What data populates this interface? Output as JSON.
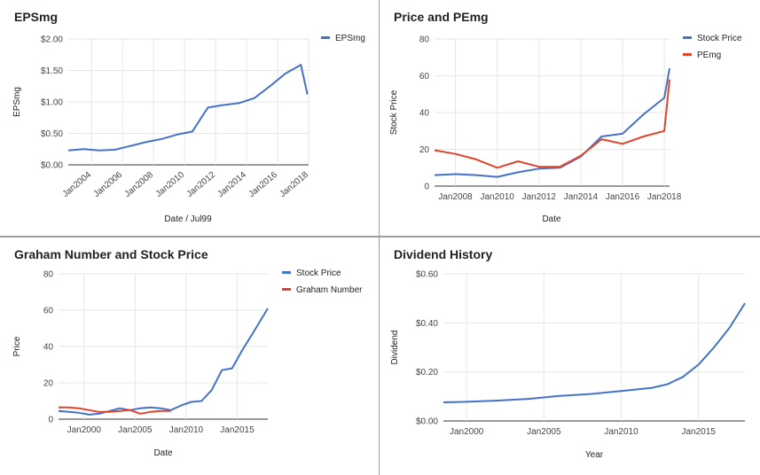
{
  "chart_data": [
    {
      "id": "eps",
      "type": "line",
      "title": "EPSmg",
      "xlabel": "Date / Jul99",
      "ylabel": "EPSmg",
      "ylim": [
        0,
        2
      ],
      "xlim": [
        2002.5,
        2018.0
      ],
      "yticks": [
        0,
        0.5,
        1.0,
        1.5,
        2.0
      ],
      "ytick_labels": [
        "$0.00",
        "$0.50",
        "$1.00",
        "$1.50",
        "$2.00"
      ],
      "xticks": [
        2004,
        2006,
        2008,
        2010,
        2012,
        2014,
        2016,
        2018
      ],
      "xtick_labels": [
        "Jan2004",
        "Jan2006",
        "Jan2008",
        "Jan2010",
        "Jan2012",
        "Jan2014",
        "Jan2016",
        "Jan2018"
      ],
      "grid": true,
      "legend_position": "top-right",
      "series": [
        {
          "name": "EPSmg",
          "color": "#4472ca",
          "x": [
            2002.5,
            2003.5,
            2004.5,
            2005.5,
            2006.5,
            2007.5,
            2008.5,
            2009.5,
            2010.5,
            2011.5,
            2012.5,
            2013.5,
            2014.5,
            2015.5,
            2016.5,
            2017.5,
            2017.92
          ],
          "y": [
            0.23,
            0.25,
            0.23,
            0.24,
            0.3,
            0.36,
            0.41,
            0.48,
            0.53,
            0.91,
            0.95,
            0.98,
            1.06,
            1.25,
            1.45,
            1.59,
            1.12
          ]
        }
      ]
    },
    {
      "id": "price_pe",
      "type": "line",
      "title": "Price and PEmg",
      "xlabel": "Date",
      "ylabel": "Stock Price",
      "ylim": [
        0,
        80
      ],
      "xlim": [
        2007.0,
        2018.25
      ],
      "yticks": [
        0,
        20,
        40,
        60,
        80
      ],
      "ytick_labels": [
        "0",
        "20",
        "40",
        "60",
        "80"
      ],
      "xticks": [
        2008,
        2010,
        2012,
        2014,
        2016,
        2018
      ],
      "xtick_labels": [
        "Jan2008",
        "Jan2010",
        "Jan2012",
        "Jan2014",
        "Jan2016",
        "Jan2018"
      ],
      "grid": true,
      "legend_position": "top-right",
      "series": [
        {
          "name": "Stock Price",
          "color": "#4472ca",
          "x": [
            2007.0,
            2008.0,
            2009.0,
            2010.0,
            2011.0,
            2012.0,
            2013.0,
            2014.0,
            2015.0,
            2016.0,
            2017.0,
            2018.0,
            2018.25
          ],
          "y": [
            6,
            6.5,
            6,
            5,
            7.5,
            9.5,
            10,
            16,
            27,
            28.5,
            39,
            48,
            64
          ]
        },
        {
          "name": "PEmg",
          "color": "#e0452b",
          "x": [
            2007.0,
            2008.0,
            2009.0,
            2010.0,
            2011.0,
            2012.0,
            2013.0,
            2014.0,
            2015.0,
            2016.0,
            2017.0,
            2018.0,
            2018.25
          ],
          "y": [
            19.5,
            17.5,
            14.5,
            10,
            13.5,
            10.5,
            10.5,
            16.5,
            25.5,
            23,
            27,
            30,
            58
          ]
        }
      ]
    },
    {
      "id": "graham",
      "type": "line",
      "title": "Graham Number and Stock Price",
      "xlabel": "Date",
      "ylabel": "Price",
      "ylim": [
        0,
        80
      ],
      "xlim": [
        1997.5,
        2018.0
      ],
      "yticks": [
        0,
        20,
        40,
        60,
        80
      ],
      "ytick_labels": [
        "0",
        "20",
        "40",
        "60",
        "80"
      ],
      "xticks": [
        2000,
        2005,
        2010,
        2015
      ],
      "xtick_labels": [
        "Jan2000",
        "Jan2005",
        "Jan2010",
        "Jan2015"
      ],
      "grid": true,
      "legend_position": "top-right",
      "series": [
        {
          "name": "Stock Price",
          "color": "#4472ca",
          "x": [
            1997.5,
            1998.5,
            1999.5,
            2000.5,
            2001.5,
            2002.5,
            2003.5,
            2004.5,
            2005.5,
            2006.5,
            2007.5,
            2008.5,
            2009.5,
            2010.5,
            2011.5,
            2012.5,
            2013.5,
            2014.5,
            2015.5,
            2016.5,
            2018.0
          ],
          "y": [
            4.5,
            4,
            3.5,
            2.5,
            3,
            4.5,
            6,
            5,
            6,
            6.5,
            6,
            5,
            7.5,
            9.5,
            10,
            16,
            27,
            28,
            38,
            47,
            61
          ]
        },
        {
          "name": "Graham Number",
          "color": "#e0452b",
          "x": [
            1997.5,
            1998.5,
            1999.5,
            2000.5,
            2001.5,
            2002.5,
            2003.5,
            2004.5,
            2005.5,
            2006.5,
            2007.5,
            2008.5
          ],
          "y": [
            6.5,
            6.5,
            6,
            5,
            4,
            4,
            4.5,
            5,
            3,
            4,
            4.5,
            4.5
          ]
        }
      ]
    },
    {
      "id": "dividend",
      "type": "line",
      "title": "Dividend History",
      "xlabel": "Year",
      "ylabel": "Dividend",
      "ylim": [
        0,
        0.6
      ],
      "xlim": [
        1998.5,
        2018.0
      ],
      "yticks": [
        0,
        0.2,
        0.4,
        0.6
      ],
      "ytick_labels": [
        "$0.00",
        "$0.20",
        "$0.40",
        "$0.60"
      ],
      "xticks": [
        2000,
        2005,
        2010,
        2015
      ],
      "xtick_labels": [
        "Jan2000",
        "Jan2005",
        "Jan2010",
        "Jan2015"
      ],
      "grid": true,
      "legend_position": "none",
      "series": [
        {
          "color": "#4472ca",
          "x": [
            1998.5,
            2000,
            2002,
            2004,
            2006,
            2008,
            2010,
            2012,
            2013,
            2014,
            2015,
            2016,
            2017,
            2018.0
          ],
          "y": [
            0.076,
            0.078,
            0.083,
            0.09,
            0.102,
            0.11,
            0.122,
            0.135,
            0.15,
            0.18,
            0.23,
            0.3,
            0.38,
            0.48
          ]
        }
      ]
    }
  ]
}
